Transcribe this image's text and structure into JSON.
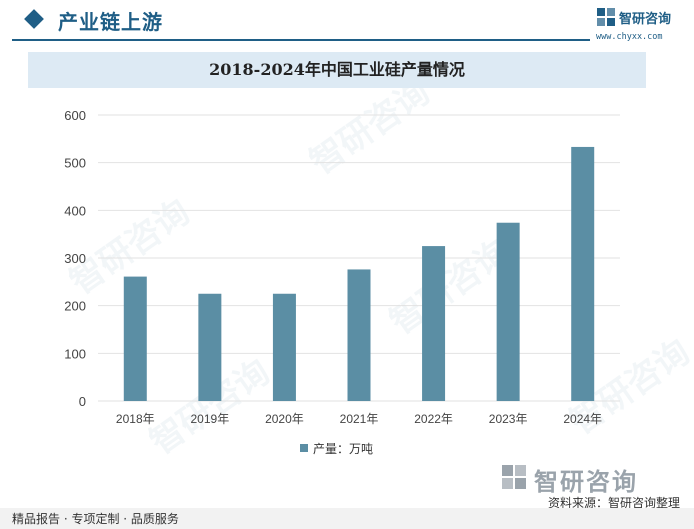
{
  "header": {
    "section_title": "产业链上游",
    "brand_name": "智研咨询",
    "brand_url": "www.chyxx.com"
  },
  "chart_data": {
    "type": "bar",
    "title": "2018-2024年中国工业硅产量情况",
    "categories": [
      "2018年",
      "2019年",
      "2020年",
      "2021年",
      "2022年",
      "2023年",
      "2024年"
    ],
    "series": [
      {
        "name": "产量：万吨",
        "values": [
          261,
          225,
          225,
          276,
          325,
          374,
          533
        ]
      }
    ],
    "ylim": [
      0,
      600
    ],
    "yticks": [
      0,
      100,
      200,
      300,
      400,
      500,
      600
    ],
    "grid": true,
    "legend": "bottom-center",
    "bar_color": "#5b8ea4",
    "grid_color": "#e2e2e2"
  },
  "footer": {
    "logo_text": "智研咨询",
    "source": "资料来源：智研咨询整理",
    "slogan": "精品报告 · 专项定制 · 品质服务"
  },
  "colors": {
    "brand": "#1f5e86",
    "title_bar": "#ddeaf4"
  }
}
